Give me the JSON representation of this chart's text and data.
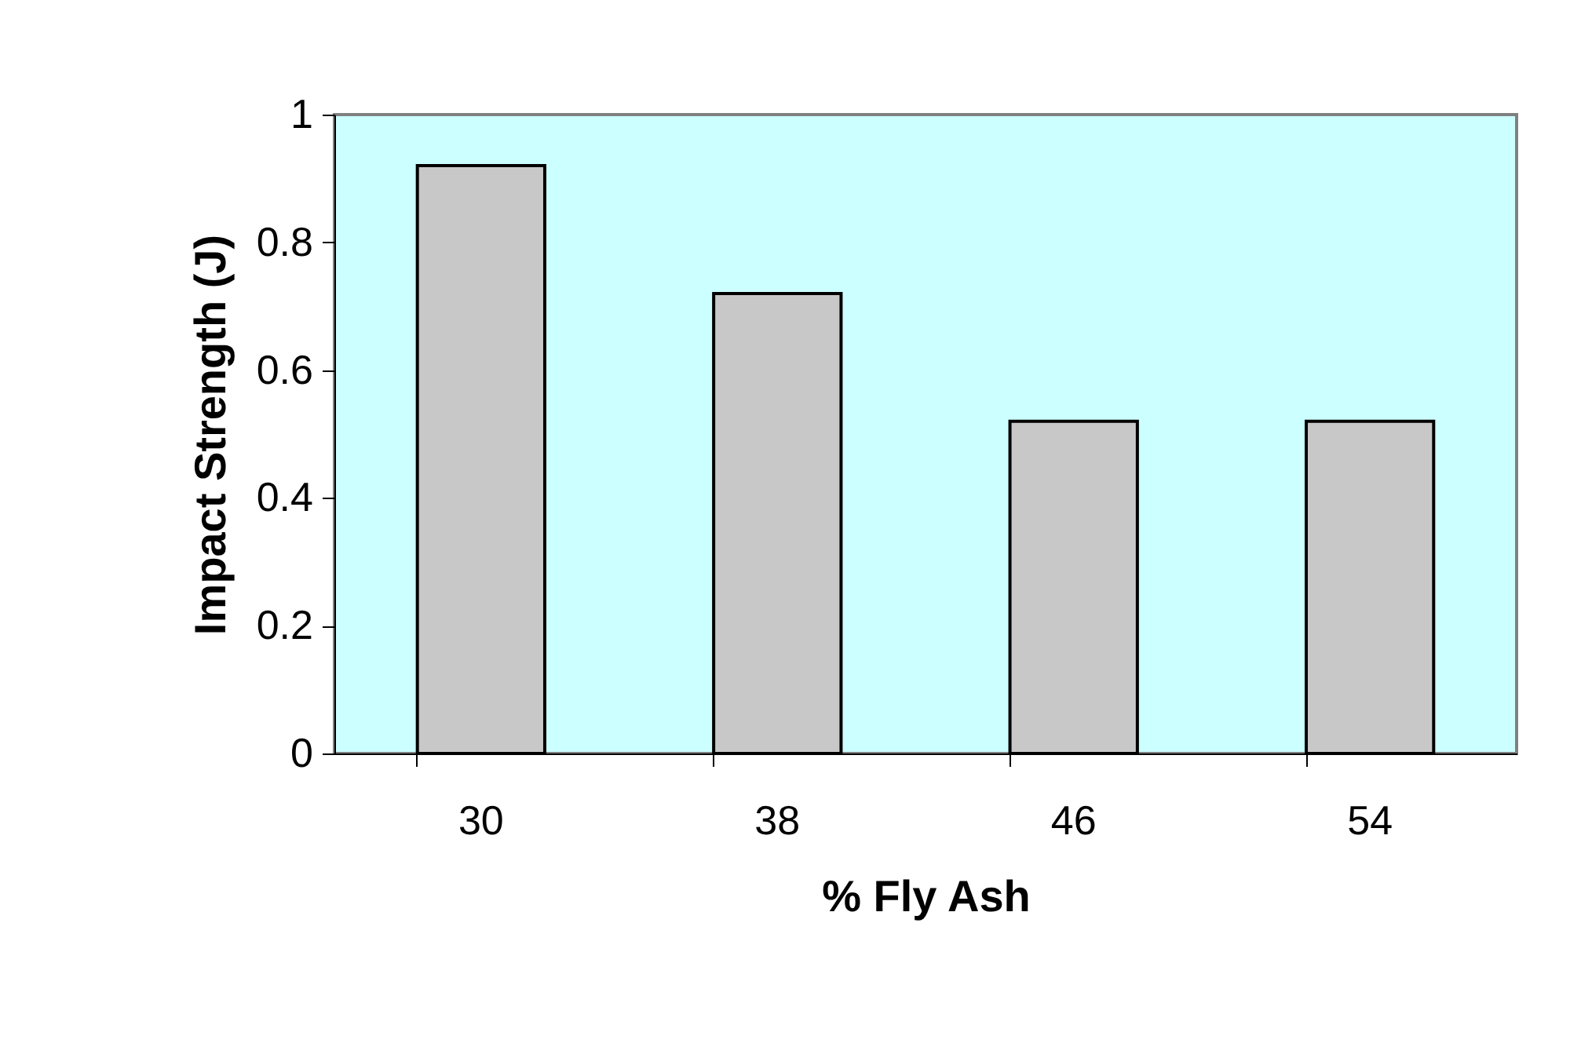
{
  "chart_data": {
    "type": "bar",
    "xlabel": "% Fly Ash",
    "ylabel": "Impact Strength (J)",
    "categories": [
      "30",
      "38",
      "46",
      "54"
    ],
    "values": [
      0.92,
      0.72,
      0.52,
      0.52
    ],
    "color": "#c8c8c8",
    "ylim": [
      0,
      1
    ],
    "yticks": [
      0,
      0.2,
      0.4,
      0.6,
      0.8,
      1
    ],
    "grid": false
  }
}
